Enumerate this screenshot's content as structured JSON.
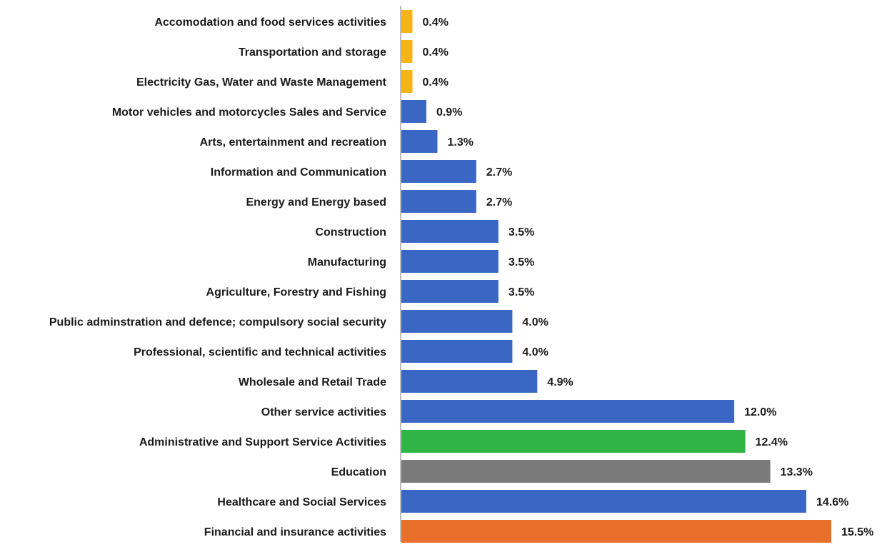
{
  "chart_data": {
    "type": "bar",
    "orientation": "horizontal",
    "title": "",
    "xlabel": "",
    "ylabel": "",
    "grid": false,
    "value_suffix": "%",
    "xlim": [
      0,
      15.5
    ],
    "categories": [
      "Accomodation and food services activities",
      "Transportation and storage",
      "Electricity Gas, Water and Waste Management",
      "Motor vehicles and motorcycles Sales and Service",
      "Arts, entertainment and recreation",
      "Information and Communication",
      "Energy and Energy based",
      "Construction",
      "Manufacturing",
      "Agriculture, Forestry and Fishing",
      "Public adminstration and defence; compulsory social security",
      "Professional, scientific and technical activities",
      "Wholesale and Retail Trade",
      "Other service activities",
      "Administrative and Support Service Activities",
      "Education",
      "Healthcare and Social Services",
      "Financial and insurance activities"
    ],
    "values": [
      0.4,
      0.4,
      0.4,
      0.9,
      1.3,
      2.7,
      2.7,
      3.5,
      3.5,
      3.5,
      4.0,
      4.0,
      4.9,
      12.0,
      12.4,
      13.3,
      14.6,
      15.5
    ],
    "value_labels": [
      "0.4%",
      "0.4%",
      "0.4%",
      "0.9%",
      "1.3%",
      "2.7%",
      "2.7%",
      "3.5%",
      "3.5%",
      "3.5%",
      "4.0%",
      "4.0%",
      "4.9%",
      "12.0%",
      "12.4%",
      "13.3%",
      "14.6%",
      "15.5%"
    ],
    "bar_colors": [
      "#f5b418",
      "#f5b418",
      "#f5b418",
      "#3a66c4",
      "#3a66c4",
      "#3a66c4",
      "#3a66c4",
      "#3a66c4",
      "#3a66c4",
      "#3a66c4",
      "#3a66c4",
      "#3a66c4",
      "#3a66c4",
      "#3a66c4",
      "#31b446",
      "#7a7a7a",
      "#3a66c4",
      "#e8702a"
    ],
    "axis_color": "#a6a6a6"
  }
}
